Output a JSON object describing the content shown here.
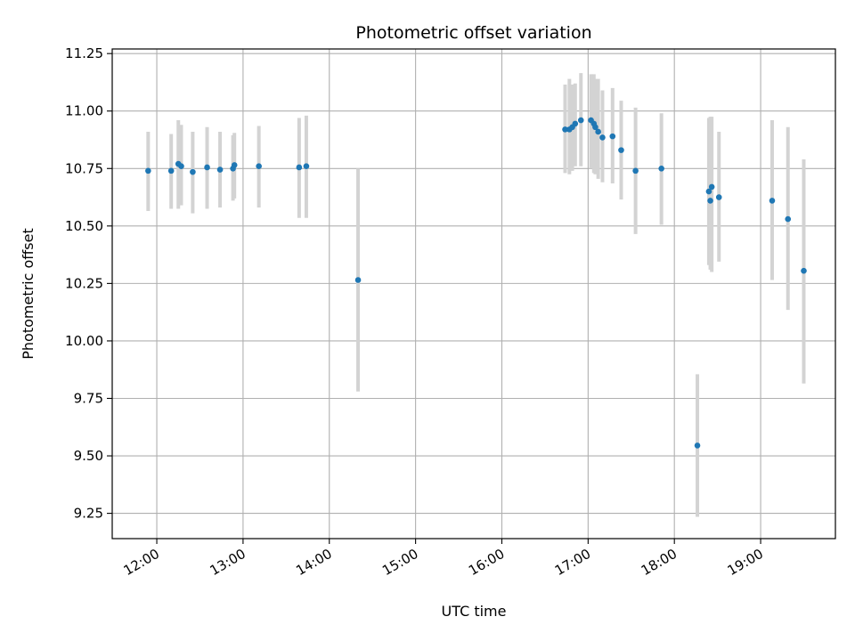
{
  "chart_data": {
    "type": "scatter",
    "title": "Photometric offset variation",
    "xlabel": "UTC time",
    "ylabel": "Photometric offset",
    "grid": true,
    "legend": "none",
    "xlim": [
      "11:29",
      "19:52"
    ],
    "ylim": [
      9.14,
      11.27
    ],
    "x_ticks": [
      "12:00",
      "13:00",
      "14:00",
      "15:00",
      "16:00",
      "17:00",
      "18:00",
      "19:00"
    ],
    "y_ticks": [
      "9.25",
      "9.50",
      "9.75",
      "10.00",
      "10.25",
      "10.50",
      "10.75",
      "11.00",
      "11.25"
    ],
    "colors": {
      "points": "#1f77b4",
      "error_bars": "#d3d3d3",
      "grid": "#b0b0b0"
    },
    "points": [
      {
        "x": "11:54",
        "y": 10.74,
        "ylo": 10.565,
        "yhi": 10.91
      },
      {
        "x": "12:10",
        "y": 10.74,
        "ylo": 10.575,
        "yhi": 10.9
      },
      {
        "x": "12:15",
        "y": 10.77,
        "ylo": 10.575,
        "yhi": 10.96
      },
      {
        "x": "12:17",
        "y": 10.76,
        "ylo": 10.59,
        "yhi": 10.94
      },
      {
        "x": "12:25",
        "y": 10.735,
        "ylo": 10.555,
        "yhi": 10.91
      },
      {
        "x": "12:35",
        "y": 10.755,
        "ylo": 10.575,
        "yhi": 10.93
      },
      {
        "x": "12:44",
        "y": 10.745,
        "ylo": 10.58,
        "yhi": 10.91
      },
      {
        "x": "12:53",
        "y": 10.75,
        "ylo": 10.61,
        "yhi": 10.895
      },
      {
        "x": "12:54",
        "y": 10.765,
        "ylo": 10.62,
        "yhi": 10.905
      },
      {
        "x": "13:11",
        "y": 10.76,
        "ylo": 10.58,
        "yhi": 10.935
      },
      {
        "x": "13:39",
        "y": 10.755,
        "ylo": 10.535,
        "yhi": 10.97
      },
      {
        "x": "13:44",
        "y": 10.76,
        "ylo": 10.535,
        "yhi": 10.98
      },
      {
        "x": "14:20",
        "y": 10.265,
        "ylo": 9.78,
        "yhi": 10.75
      },
      {
        "x": "16:44",
        "y": 10.92,
        "ylo": 10.73,
        "yhi": 11.115
      },
      {
        "x": "16:47",
        "y": 10.92,
        "ylo": 10.725,
        "yhi": 11.14
      },
      {
        "x": "16:49",
        "y": 10.93,
        "ylo": 10.74,
        "yhi": 11.115
      },
      {
        "x": "16:51",
        "y": 10.945,
        "ylo": 10.76,
        "yhi": 11.12
      },
      {
        "x": "16:55",
        "y": 10.96,
        "ylo": 10.76,
        "yhi": 11.165
      },
      {
        "x": "17:02",
        "y": 10.96,
        "ylo": 10.75,
        "yhi": 11.16
      },
      {
        "x": "17:04",
        "y": 10.945,
        "ylo": 10.73,
        "yhi": 11.16
      },
      {
        "x": "17:05",
        "y": 10.93,
        "ylo": 10.725,
        "yhi": 11.14
      },
      {
        "x": "17:07",
        "y": 10.91,
        "ylo": 10.705,
        "yhi": 11.14
      },
      {
        "x": "17:10",
        "y": 10.885,
        "ylo": 10.69,
        "yhi": 11.09
      },
      {
        "x": "17:17",
        "y": 10.89,
        "ylo": 10.685,
        "yhi": 11.1
      },
      {
        "x": "17:23",
        "y": 10.83,
        "ylo": 10.615,
        "yhi": 11.045
      },
      {
        "x": "17:33",
        "y": 10.74,
        "ylo": 10.465,
        "yhi": 11.015
      },
      {
        "x": "17:51",
        "y": 10.75,
        "ylo": 10.505,
        "yhi": 10.99
      },
      {
        "x": "18:16",
        "y": 9.545,
        "ylo": 9.235,
        "yhi": 9.855
      },
      {
        "x": "18:24",
        "y": 10.65,
        "ylo": 10.33,
        "yhi": 10.97
      },
      {
        "x": "18:25",
        "y": 10.61,
        "ylo": 10.31,
        "yhi": 10.975
      },
      {
        "x": "18:26",
        "y": 10.67,
        "ylo": 10.3,
        "yhi": 10.975
      },
      {
        "x": "18:31",
        "y": 10.625,
        "ylo": 10.345,
        "yhi": 10.91
      },
      {
        "x": "19:08",
        "y": 10.61,
        "ylo": 10.265,
        "yhi": 10.96
      },
      {
        "x": "19:19",
        "y": 10.53,
        "ylo": 10.135,
        "yhi": 10.93
      },
      {
        "x": "19:30",
        "y": 10.305,
        "ylo": 9.815,
        "yhi": 10.79
      }
    ]
  }
}
